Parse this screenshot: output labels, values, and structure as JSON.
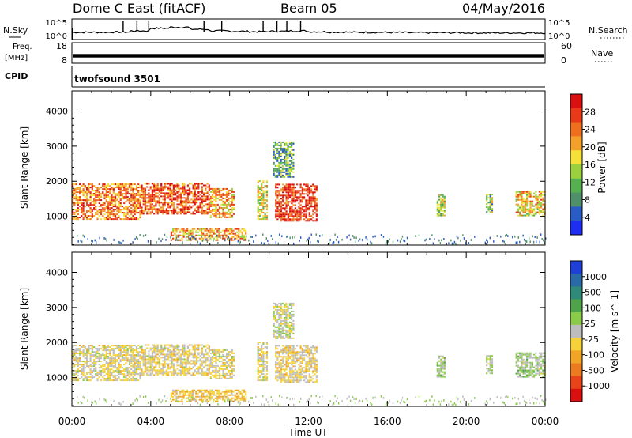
{
  "header": {
    "radar": "Dome C East (fitACF)",
    "beam": "Beam 05",
    "date": "04/May/2016"
  },
  "nsky_panel": {
    "left_label": "N.Sky",
    "left_ticks": [
      "10^5",
      "10^0"
    ],
    "right_ticks": [
      "10^5",
      "10^0"
    ],
    "right_label": "N.Search",
    "values": [
      0.35,
      0.35,
      0.36,
      0.42,
      0.55,
      0.6,
      0.5,
      0.42,
      0.4,
      0.38,
      0.4,
      0.42,
      0.38,
      0.36,
      0.35,
      0.35,
      0.34,
      0.33,
      0.33,
      0.33,
      0.32,
      0.32,
      0.32,
      0.32
    ],
    "spikes_hours": [
      2.6,
      3.3,
      3.9,
      6.7,
      7.6,
      9.7,
      10.4,
      10.9,
      11.6
    ]
  },
  "freq_panel": {
    "left_label_1": "Freq.",
    "left_label_2": "[MHz]",
    "left_ticks": [
      "18",
      "8"
    ],
    "right_ticks": [
      "60",
      "0"
    ],
    "right_label": "Nave",
    "band_fraction": [
      0.55,
      0.72
    ]
  },
  "cpid": {
    "label": "CPID",
    "value": "twofsound 3501"
  },
  "x_axis": {
    "ticks": [
      "00:00",
      "04:00",
      "08:00",
      "12:00",
      "16:00",
      "20:00",
      "00:00"
    ],
    "label": "Time UT",
    "range_hours": [
      0,
      24
    ]
  },
  "y_axis": {
    "label": "Slant Range [km]",
    "ticks": [
      "1000",
      "2000",
      "3000",
      "4000"
    ],
    "tick_values": [
      1000,
      2000,
      3000,
      4000
    ],
    "range_km": [
      180,
      4575
    ]
  },
  "power_colorbar": {
    "label": "Power [dB]",
    "ticks": [
      "4",
      "8",
      "12",
      "16",
      "20",
      "24",
      "28"
    ],
    "colors": [
      "#1e2ef0",
      "#2a5cc6",
      "#4f8f6a",
      "#56b04f",
      "#9ad13c",
      "#f6e13a",
      "#f4a12c",
      "#ef6f1e",
      "#e83a18",
      "#d91010"
    ]
  },
  "velocity_colorbar": {
    "label": "Velocity [m s^-1]",
    "ticks": [
      "1000",
      "500",
      "100",
      "25",
      "-25",
      "-100",
      "-500",
      "-1000"
    ],
    "colors": [
      "#1f3fd6",
      "#2a6aa8",
      "#2f8a7a",
      "#4fa34a",
      "#8acb4a",
      "#bdbdbd",
      "#f6d23a",
      "#f0a526",
      "#ec7a1e",
      "#e8441a",
      "#d81010"
    ]
  },
  "chart_data": {
    "type": "heatmap",
    "title": "Dome C East (fitACF)   Beam 05   04/May/2016",
    "xlabel": "Time UT",
    "ylabel": "Slant Range [km]",
    "xlim": [
      0,
      24
    ],
    "ylim": [
      180,
      4575
    ],
    "regions": [
      {
        "t0": 0.0,
        "t1": 3.5,
        "r0": 900,
        "r1": 1900,
        "power_db": 22,
        "velocity": -100
      },
      {
        "t0": 3.5,
        "t1": 7.0,
        "r0": 1050,
        "r1": 1950,
        "power_db": 24,
        "velocity": -120
      },
      {
        "t0": 7.0,
        "t1": 8.2,
        "r0": 950,
        "r1": 1800,
        "power_db": 20,
        "velocity": -100
      },
      {
        "t0": 5.0,
        "t1": 8.8,
        "r0": 300,
        "r1": 650,
        "power_db": 20,
        "velocity": -300
      },
      {
        "t0": 9.4,
        "t1": 9.9,
        "r0": 900,
        "r1": 2000,
        "power_db": 16,
        "velocity": -100
      },
      {
        "t0": 10.3,
        "t1": 12.4,
        "r0": 850,
        "r1": 1900,
        "power_db": 26,
        "velocity": -150
      },
      {
        "t0": 10.2,
        "t1": 11.2,
        "r0": 2100,
        "r1": 3100,
        "power_db": 10,
        "velocity": 0
      },
      {
        "t0": 18.5,
        "t1": 18.9,
        "r0": 1000,
        "r1": 1600,
        "power_db": 14,
        "velocity": 100
      },
      {
        "t0": 21.0,
        "t1": 21.3,
        "r0": 1100,
        "r1": 1600,
        "power_db": 12,
        "velocity": 50
      },
      {
        "t0": 22.5,
        "t1": 24.0,
        "r0": 1000,
        "r1": 1700,
        "power_db": 18,
        "velocity": 120
      }
    ],
    "ground_scatter": {
      "r0": 190,
      "r1": 450,
      "t0": 0,
      "t1": 24
    }
  }
}
